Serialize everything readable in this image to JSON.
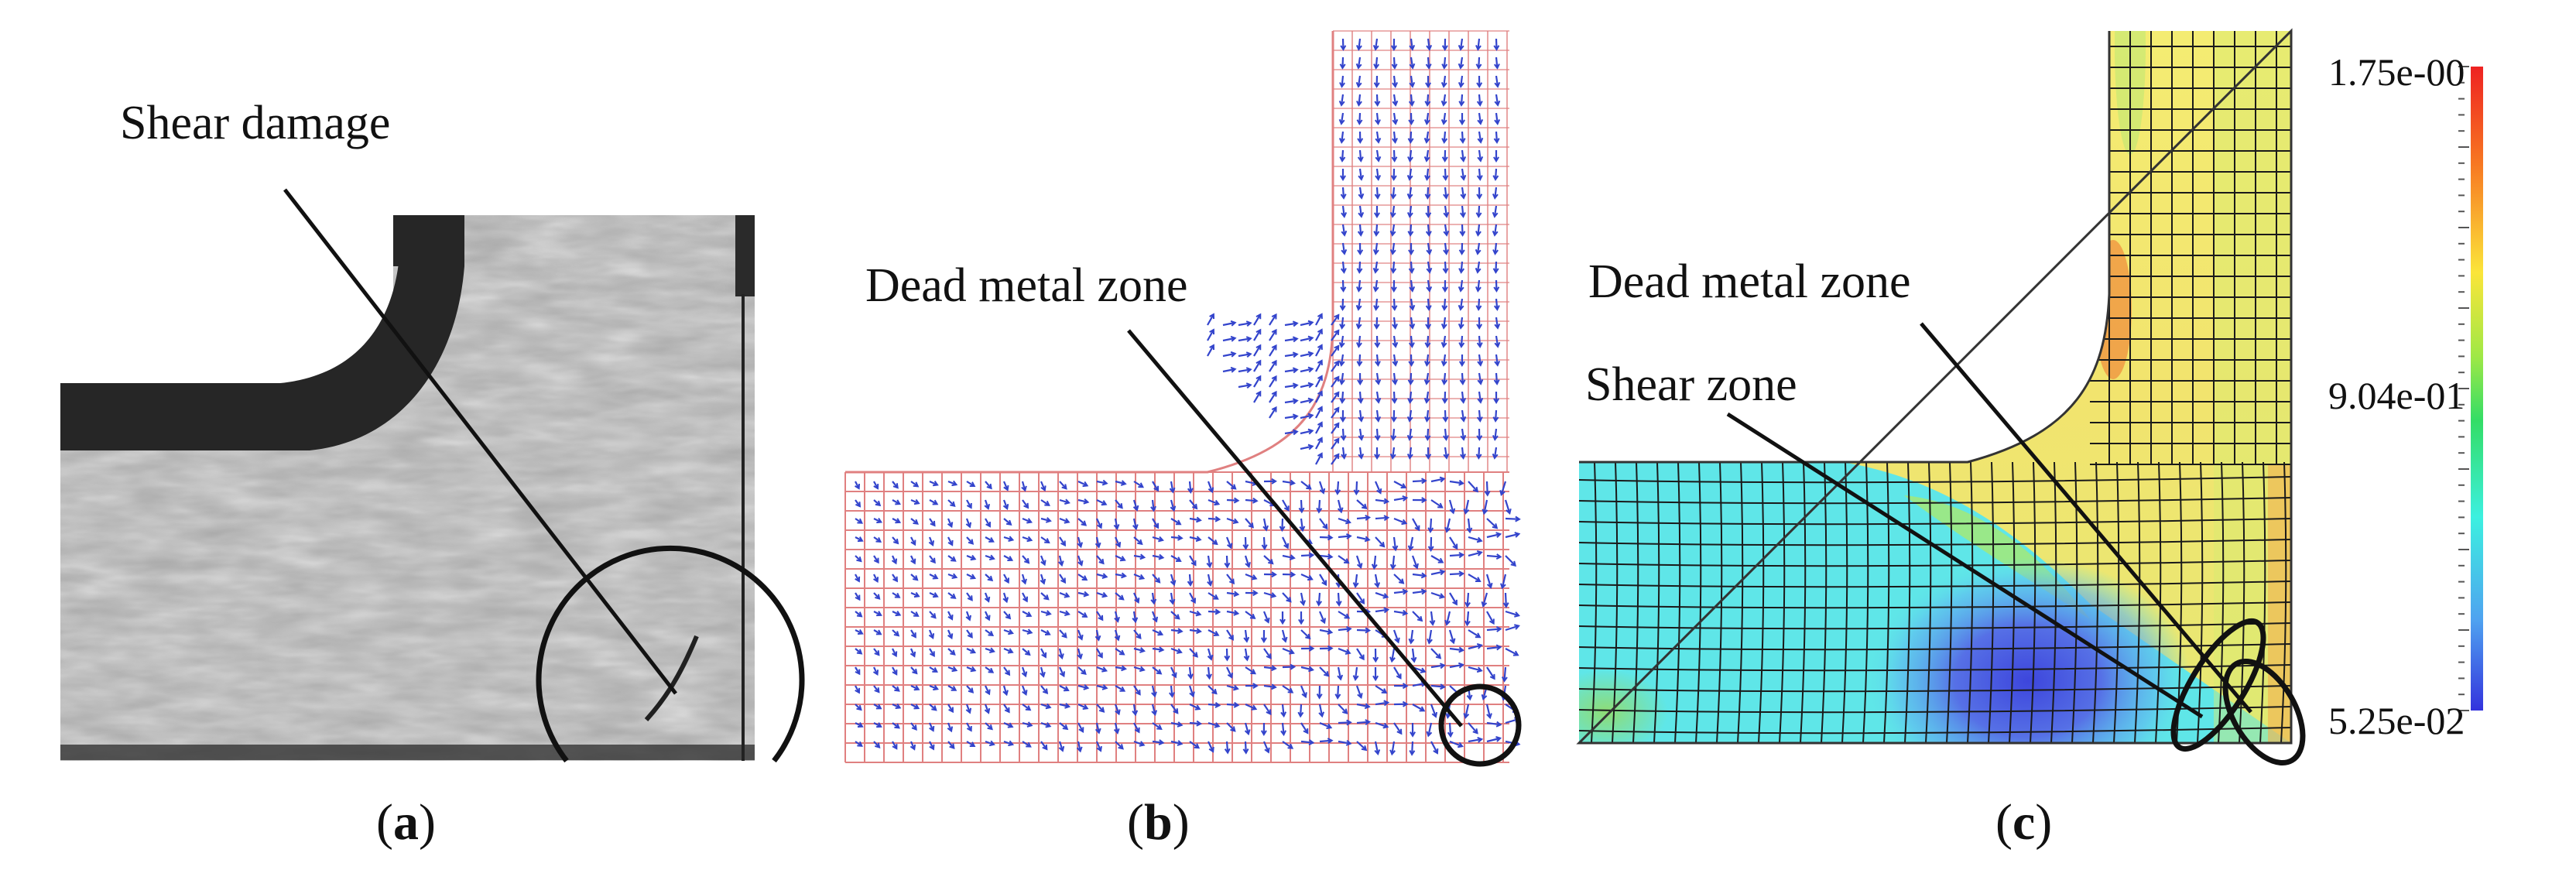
{
  "panels": [
    {
      "id": "a",
      "caption_open": "(",
      "caption_letter": "a",
      "caption_close": ")",
      "annotations": [
        "Shear damage"
      ]
    },
    {
      "id": "b",
      "caption_open": "(",
      "caption_letter": "b",
      "caption_close": ")",
      "annotations": [
        "Dead metal zone"
      ]
    },
    {
      "id": "c",
      "caption_open": "(",
      "caption_letter": "c",
      "caption_close": ")",
      "annotations": [
        "Dead metal zone",
        "Shear zone"
      ]
    }
  ],
  "colorbar": {
    "max_label": "1.75e-00",
    "mid_label": "9.04e-01",
    "min_label": "5.25e-02",
    "colors": [
      "#ee2222",
      "#f77722",
      "#fbe53a",
      "#9fe846",
      "#33dd66",
      "#3cf0e0",
      "#4fa2f0",
      "#3333dd"
    ]
  },
  "colors": {
    "ink": "#111111",
    "micrograph_bg": "#a9a9a9",
    "die_dark": "#262626",
    "mesh_red": "#e08080",
    "vector_blue": "#3344cc",
    "field_cyan": "#5fe6e8",
    "field_yellow": "#f6ee74",
    "field_blue": "#4455e0"
  }
}
